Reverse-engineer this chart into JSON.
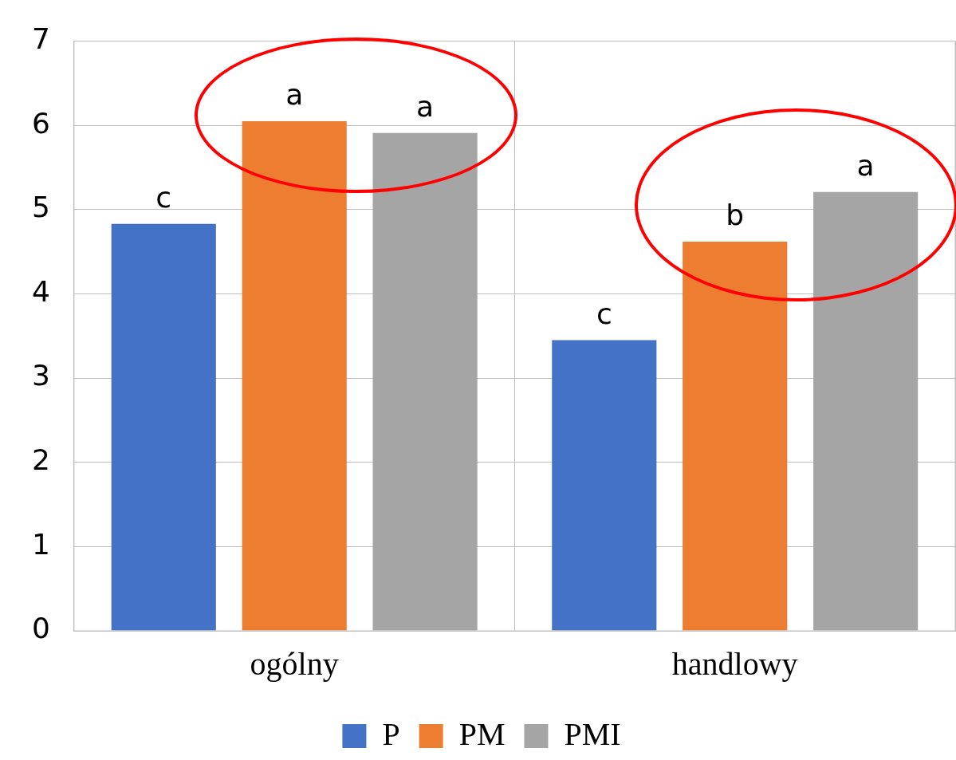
{
  "chart_data": {
    "type": "bar",
    "categories": [
      "ogólny",
      "handlowy"
    ],
    "series": [
      {
        "name": "P",
        "color": "#4472c4",
        "values": [
          4.83,
          3.45
        ]
      },
      {
        "name": "PM",
        "color": "#ed7d31",
        "values": [
          6.05,
          4.62
        ]
      },
      {
        "name": "PMI",
        "color": "#a5a5a5",
        "values": [
          5.91,
          5.21
        ]
      }
    ],
    "ylim": [
      0,
      7
    ],
    "yticks": [
      0,
      1,
      2,
      3,
      4,
      5,
      6,
      7
    ],
    "grid": true,
    "legend": "bottom",
    "annotations": [
      "c",
      "a",
      "a",
      "c",
      "b",
      "a"
    ]
  }
}
